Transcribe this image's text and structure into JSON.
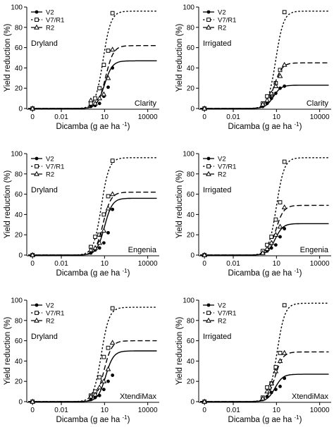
{
  "figure": {
    "x_label": "Dicamba (g ae ha",
    "x_label_superscript": "-1",
    "x_label_suffix": ")",
    "y_label": "Yield reduction (%)",
    "x_ticks": [
      "0",
      "0.01",
      "10",
      "10000"
    ],
    "y_ticks": [
      "0",
      "20",
      "40",
      "60",
      "80",
      "100"
    ],
    "legend": [
      {
        "label": "V2",
        "style": "solid",
        "marker": "filled-circle"
      },
      {
        "label": "V7/R1",
        "style": "dotted",
        "marker": "open-square"
      },
      {
        "label": "R2",
        "style": "dashed",
        "marker": "open-triangle"
      }
    ]
  },
  "chart_data": [
    {
      "type": "line",
      "setting": "Dryland",
      "product": "Clarity",
      "x_scale": "log",
      "ylim": [
        0,
        100
      ],
      "grid": false,
      "legend_position": "top-left",
      "series": [
        {
          "name": "V2",
          "asymptote": 47,
          "ed50": 10,
          "points": [
            [
              0.0001,
              0
            ],
            [
              1.12,
              2
            ],
            [
              2.24,
              3
            ],
            [
              4.48,
              5
            ],
            [
              8.96,
              12
            ],
            [
              17.9,
              21
            ],
            [
              35.8,
              40
            ]
          ]
        },
        {
          "name": "V7/R1",
          "asymptote": 96,
          "ed50": 8,
          "points": [
            [
              0.0001,
              0
            ],
            [
              1.12,
              5
            ],
            [
              2.24,
              10
            ],
            [
              4.48,
              20
            ],
            [
              8.96,
              43
            ],
            [
              17.9,
              57
            ],
            [
              35.8,
              94
            ]
          ]
        },
        {
          "name": "R2",
          "asymptote": 62,
          "ed50": 12,
          "points": [
            [
              0.0001,
              0
            ],
            [
              1.12,
              8
            ],
            [
              2.24,
              5
            ],
            [
              4.48,
              10
            ],
            [
              8.96,
              14
            ],
            [
              17.9,
              30
            ],
            [
              35.8,
              58
            ]
          ]
        }
      ]
    },
    {
      "type": "line",
      "setting": "Irrigated",
      "product": "Clarity",
      "x_scale": "log",
      "ylim": [
        0,
        100
      ],
      "grid": false,
      "legend_position": "top-left",
      "series": [
        {
          "name": "V2",
          "asymptote": 23,
          "ed50": 6,
          "points": [
            [
              0.0001,
              0
            ],
            [
              1.12,
              2
            ],
            [
              2.24,
              5
            ],
            [
              4.48,
              10
            ],
            [
              8.96,
              15
            ],
            [
              17.9,
              20
            ],
            [
              35.8,
              22
            ]
          ]
        },
        {
          "name": "V7/R1",
          "asymptote": 96,
          "ed50": 9,
          "points": [
            [
              0.0001,
              0
            ],
            [
              1.12,
              5
            ],
            [
              2.24,
              12
            ],
            [
              4.48,
              14
            ],
            [
              8.96,
              25
            ],
            [
              17.9,
              38
            ],
            [
              35.8,
              95
            ]
          ]
        },
        {
          "name": "R2",
          "asymptote": 45,
          "ed50": 7,
          "points": [
            [
              0.0001,
              0
            ],
            [
              1.12,
              4
            ],
            [
              2.24,
              8
            ],
            [
              4.48,
              15
            ],
            [
              8.96,
              22
            ],
            [
              17.9,
              32
            ],
            [
              35.8,
              43
            ]
          ]
        }
      ]
    },
    {
      "type": "line",
      "setting": "Dryland",
      "product": "Engenia",
      "x_scale": "log",
      "ylim": [
        0,
        100
      ],
      "grid": false,
      "legend_position": "top-left",
      "series": [
        {
          "name": "V2",
          "asymptote": 56,
          "ed50": 10,
          "points": [
            [
              0.0001,
              0
            ],
            [
              1.12,
              2
            ],
            [
              2.24,
              5
            ],
            [
              4.48,
              7
            ],
            [
              8.96,
              12
            ],
            [
              17.9,
              22
            ],
            [
              35.8,
              45
            ]
          ]
        },
        {
          "name": "V7/R1",
          "asymptote": 96,
          "ed50": 6,
          "points": [
            [
              0.0001,
              0
            ],
            [
              1.12,
              8
            ],
            [
              2.24,
              18
            ],
            [
              4.48,
              20
            ],
            [
              8.96,
              40
            ],
            [
              17.9,
              58
            ],
            [
              35.8,
              93
            ]
          ]
        },
        {
          "name": "R2",
          "asymptote": 62,
          "ed50": 8,
          "points": [
            [
              0.0001,
              0
            ],
            [
              1.12,
              5
            ],
            [
              2.24,
              7
            ],
            [
              4.48,
              12
            ],
            [
              8.96,
              24
            ],
            [
              17.9,
              46
            ],
            [
              35.8,
              60
            ]
          ]
        }
      ]
    },
    {
      "type": "line",
      "setting": "Irrigated",
      "product": "Engenia",
      "x_scale": "log",
      "ylim": [
        0,
        100
      ],
      "grid": false,
      "legend_position": "top-left",
      "series": [
        {
          "name": "V2",
          "asymptote": 31,
          "ed50": 8,
          "points": [
            [
              0.0001,
              0
            ],
            [
              1.12,
              2
            ],
            [
              2.24,
              4
            ],
            [
              4.48,
              7
            ],
            [
              8.96,
              10
            ],
            [
              17.9,
              18
            ],
            [
              35.8,
              26
            ]
          ]
        },
        {
          "name": "V7/R1",
          "asymptote": 96,
          "ed50": 10,
          "points": [
            [
              0.0001,
              0
            ],
            [
              1.12,
              4
            ],
            [
              2.24,
              10
            ],
            [
              4.48,
              18
            ],
            [
              8.96,
              35
            ],
            [
              17.9,
              52
            ],
            [
              35.8,
              92
            ]
          ]
        },
        {
          "name": "R2",
          "asymptote": 49,
          "ed50": 9,
          "points": [
            [
              0.0001,
              0
            ],
            [
              1.12,
              2
            ],
            [
              2.24,
              6
            ],
            [
              4.48,
              12
            ],
            [
              8.96,
              20
            ],
            [
              17.9,
              28
            ],
            [
              35.8,
              47
            ]
          ]
        }
      ]
    },
    {
      "type": "line",
      "setting": "Dryland",
      "product": "XtendiMax",
      "x_scale": "log",
      "ylim": [
        0,
        100
      ],
      "grid": false,
      "legend_position": "top-left",
      "series": [
        {
          "name": "V2",
          "asymptote": 50,
          "ed50": 12,
          "points": [
            [
              0.0001,
              0
            ],
            [
              1.12,
              2
            ],
            [
              2.24,
              4
            ],
            [
              4.48,
              6
            ],
            [
              8.96,
              12
            ],
            [
              17.9,
              20
            ],
            [
              35.8,
              26
            ]
          ]
        },
        {
          "name": "V7/R1",
          "asymptote": 93,
          "ed50": 6,
          "points": [
            [
              0.0001,
              0
            ],
            [
              1.12,
              6
            ],
            [
              2.24,
              10
            ],
            [
              4.48,
              24
            ],
            [
              8.96,
              44
            ],
            [
              17.9,
              53
            ],
            [
              35.8,
              92
            ]
          ]
        },
        {
          "name": "R2",
          "asymptote": 60,
          "ed50": 9,
          "points": [
            [
              0.0001,
              0
            ],
            [
              1.12,
              5
            ],
            [
              2.24,
              7
            ],
            [
              4.48,
              14
            ],
            [
              8.96,
              20
            ],
            [
              17.9,
              32
            ],
            [
              35.8,
              58
            ]
          ]
        }
      ]
    },
    {
      "type": "line",
      "setting": "Irrigated",
      "product": "XtendiMax",
      "x_scale": "log",
      "ylim": [
        0,
        100
      ],
      "grid": false,
      "legend_position": "top-left",
      "series": [
        {
          "name": "V2",
          "asymptote": 27,
          "ed50": 8,
          "points": [
            [
              0.0001,
              0
            ],
            [
              1.12,
              2
            ],
            [
              2.24,
              5
            ],
            [
              4.48,
              9
            ],
            [
              8.96,
              12
            ],
            [
              17.9,
              15
            ],
            [
              35.8,
              23
            ]
          ]
        },
        {
          "name": "V7/R1",
          "asymptote": 97,
          "ed50": 11,
          "points": [
            [
              0.0001,
              0
            ],
            [
              1.12,
              4
            ],
            [
              2.24,
              14
            ],
            [
              4.48,
              18
            ],
            [
              8.96,
              34
            ],
            [
              17.9,
              48
            ],
            [
              35.8,
              95
            ]
          ]
        },
        {
          "name": "R2",
          "asymptote": 49,
          "ed50": 8,
          "points": [
            [
              0.0001,
              0
            ],
            [
              1.12,
              3
            ],
            [
              2.24,
              10
            ],
            [
              4.48,
              18
            ],
            [
              8.96,
              30
            ],
            [
              17.9,
              40
            ],
            [
              35.8,
              48
            ]
          ]
        }
      ]
    }
  ]
}
